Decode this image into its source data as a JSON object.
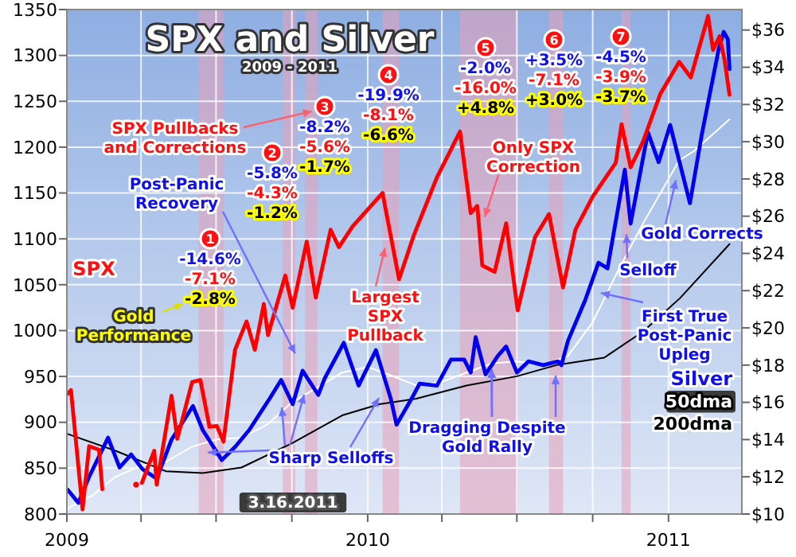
{
  "chart_data": {
    "type": "line",
    "title": "SPX and Silver",
    "subtitle": "2009 - 2011",
    "xlim": [
      "2009",
      "2011-03-31"
    ],
    "xticks": [
      {
        "value": "2009",
        "label": "2009"
      },
      {
        "value": "2009-04",
        "label": null
      },
      {
        "value": "2009-07",
        "label": null
      },
      {
        "value": "2009-10",
        "label": null
      },
      {
        "value": "2010",
        "label": "2010"
      },
      {
        "value": "2010-04",
        "label": null
      },
      {
        "value": "2010-07",
        "label": null
      },
      {
        "value": "2010-10",
        "label": null
      },
      {
        "value": "2011",
        "label": "2011"
      }
    ],
    "ylim": [
      800,
      1350
    ],
    "yticks": [
      800,
      850,
      900,
      950,
      1000,
      1050,
      1100,
      1150,
      1200,
      1250,
      1300,
      1350
    ],
    "y2lim": [
      10,
      37.1
    ],
    "y2ticks": [
      {
        "value": 10,
        "label": "$10"
      },
      {
        "value": 12,
        "label": "$12"
      },
      {
        "value": 14,
        "label": "$14"
      },
      {
        "value": 16,
        "label": "$16"
      },
      {
        "value": 18,
        "label": "$18"
      },
      {
        "value": 20,
        "label": "$20"
      },
      {
        "value": 22,
        "label": "$22"
      },
      {
        "value": 24,
        "label": "$24"
      },
      {
        "value": 26,
        "label": "$26"
      },
      {
        "value": 28,
        "label": "$28"
      },
      {
        "value": 30,
        "label": "$30"
      },
      {
        "value": 32,
        "label": "$32"
      },
      {
        "value": 34,
        "label": "$34"
      },
      {
        "value": 36,
        "label": "$36"
      }
    ],
    "grid": true,
    "series": [
      {
        "name": "SPX",
        "color": "#ff0000",
        "x": [
          "2009-01-02",
          "2009-01-06",
          "2009-01-20",
          "2009-01-28",
          "2009-02-09",
          "2009-02-13",
          "2009-02-20",
          "2009-03-09",
          "2009-03-17",
          "2009-03-26",
          "2009-03-30",
          "2009-04-02",
          "2009-04-17",
          "2009-04-20",
          "2009-05-08",
          "2009-05-15",
          "2009-06-02",
          "2009-06-12",
          "2009-06-23",
          "2009-07-02",
          "2009-07-10",
          "2009-07-24",
          "2009-08-07",
          "2009-08-17",
          "2009-08-28",
          "2009-09-02",
          "2009-09-23",
          "2009-10-02",
          "2009-10-19",
          "2009-10-30",
          "2009-11-17",
          "2009-11-27",
          "2009-12-14",
          "2010-01-19",
          "2010-02-08",
          "2010-02-26",
          "2010-03-26",
          "2010-04-23",
          "2010-05-06",
          "2010-05-14",
          "2010-05-20",
          "2010-06-04",
          "2010-06-18",
          "2010-07-02",
          "2010-07-23",
          "2010-08-09",
          "2010-08-26",
          "2010-09-10",
          "2010-10-01",
          "2010-10-29",
          "2010-11-05",
          "2010-11-16",
          "2010-12-01",
          "2010-12-22",
          "2011-01-14",
          "2011-01-28",
          "2011-02-18",
          "2011-02-24",
          "2011-03-04",
          "2011-03-10",
          "2011-03-16"
        ],
        "values": [
          931,
          935,
          805,
          874,
          870,
          827,
          null,
          null,
          null,
          832,
          null,
          834,
          869,
          832,
          929,
          882,
          944,
          946,
          895,
          896,
          879,
          979,
          1010,
          979,
          1029,
          995,
          1060,
          1025,
          1097,
          1036,
          1110,
          1091,
          1114,
          1150,
          1056,
          1104,
          1167,
          1217,
          1128,
          1136,
          1071,
          1064,
          1117,
          1022,
          1102,
          1127,
          1047,
          1110,
          1146,
          1183,
          1225,
          1178,
          1206,
          1258,
          1293,
          1276,
          1343,
          1306,
          1321,
          1295,
          1257
        ]
      },
      {
        "name": "Silver",
        "color": "#0000ee",
        "axis": "y2",
        "x": [
          "2009-01-02",
          "2009-01-15",
          "2009-01-28",
          "2009-02-20",
          "2009-03-06",
          "2009-03-20",
          "2009-04-03",
          "2009-04-20",
          "2009-05-08",
          "2009-06-03",
          "2009-06-15",
          "2009-07-08",
          "2009-07-24",
          "2009-08-10",
          "2009-09-04",
          "2009-09-18",
          "2009-10-02",
          "2009-10-14",
          "2009-11-02",
          "2009-11-10",
          "2009-12-03",
          "2009-12-21",
          "2010-01-11",
          "2010-01-29",
          "2010-02-05",
          "2010-02-22",
          "2010-03-05",
          "2010-03-26",
          "2010-04-12",
          "2010-04-28",
          "2010-05-06",
          "2010-05-12",
          "2010-05-24",
          "2010-06-08",
          "2010-06-18",
          "2010-07-01",
          "2010-07-15",
          "2010-08-02",
          "2010-08-20",
          "2010-08-24",
          "2010-09-01",
          "2010-09-22",
          "2010-10-08",
          "2010-10-19",
          "2010-11-09",
          "2010-11-16",
          "2010-12-07",
          "2010-12-20",
          "2011-01-03",
          "2011-01-27",
          "2011-02-10",
          "2011-03-03",
          "2011-03-09",
          "2011-03-14",
          "2011-03-16"
        ],
        "values": [
          11.3,
          10.6,
          12.0,
          14.1,
          12.5,
          13.2,
          12.4,
          11.9,
          14.0,
          15.8,
          14.5,
          12.9,
          13.6,
          14.5,
          16.2,
          17.2,
          15.9,
          17.7,
          16.4,
          17.3,
          19.2,
          16.9,
          18.8,
          16.2,
          14.8,
          16.1,
          17.0,
          16.9,
          18.3,
          18.3,
          17.6,
          19.5,
          17.5,
          18.5,
          19.0,
          17.6,
          18.2,
          18.0,
          18.2,
          18.0,
          19.3,
          21.5,
          23.5,
          23.2,
          28.5,
          25.6,
          30.5,
          28.9,
          30.9,
          26.7,
          30.3,
          35.0,
          35.9,
          35.5,
          33.9
        ]
      },
      {
        "name": "50dma",
        "color": "#ffffff",
        "axis": "y2",
        "x": [
          "2009-01-02",
          "2009-02-01",
          "2009-03-01",
          "2009-04-01",
          "2009-05-01",
          "2009-06-01",
          "2009-07-01",
          "2009-08-01",
          "2009-09-01",
          "2009-10-01",
          "2009-11-01",
          "2009-12-01",
          "2010-01-01",
          "2010-02-01",
          "2010-03-01",
          "2010-04-01",
          "2010-05-01",
          "2010-06-01",
          "2010-07-01",
          "2010-08-01",
          "2010-09-01",
          "2010-10-01",
          "2010-11-01",
          "2010-12-01",
          "2011-01-14",
          "2011-02-01",
          "2011-03-16"
        ],
        "values": [
          10.3,
          11.0,
          12.0,
          12.6,
          12.8,
          13.6,
          14.0,
          14.1,
          14.8,
          16.0,
          16.8,
          17.6,
          17.9,
          17.4,
          16.9,
          17.1,
          17.6,
          18.1,
          18.2,
          18.0,
          18.5,
          20.3,
          23.1,
          25.6,
          29.0,
          29.5,
          31.2
        ]
      },
      {
        "name": "200dma",
        "color": "#000000",
        "axis": "y2",
        "x": [
          "2009-01-02",
          "2009-03-01",
          "2009-05-01",
          "2009-06-15",
          "2009-08-01",
          "2009-10-01",
          "2009-12-01",
          "2010-01-15",
          "2010-03-01",
          "2010-05-01",
          "2010-07-01",
          "2010-08-18",
          "2010-10-15",
          "2010-12-01",
          "2011-01-15",
          "2011-03-16"
        ],
        "values": [
          14.3,
          13.4,
          12.3,
          12.2,
          12.5,
          13.8,
          15.3,
          15.9,
          16.2,
          16.9,
          17.4,
          18.0,
          18.4,
          19.8,
          21.6,
          24.5
        ]
      }
    ],
    "bands": [
      {
        "axis": "x",
        "from": "2009-06-10",
        "to": "2009-07-10",
        "label": "1",
        "color": "#e8a0b8"
      },
      {
        "axis": "x",
        "from": "2009-09-20",
        "to": "2009-10-05",
        "label": "2",
        "color": "#e8a0b8"
      },
      {
        "axis": "x",
        "from": "2009-10-17",
        "to": "2009-11-01",
        "label": "3",
        "color": "#e8a0b8"
      },
      {
        "axis": "x",
        "from": "2010-01-19",
        "to": "2010-02-08",
        "label": "4",
        "color": "#e8a0b8"
      },
      {
        "axis": "x",
        "from": "2010-04-23",
        "to": "2010-07-02",
        "label": "5",
        "color": "#e8a0b8"
      },
      {
        "axis": "x",
        "from": "2010-08-09",
        "to": "2010-08-26",
        "label": "6",
        "color": "#e8a0b8"
      },
      {
        "axis": "x",
        "from": "2010-11-05",
        "to": "2010-11-16",
        "label": "7",
        "color": "#e8a0b8"
      }
    ],
    "annotations": [
      {
        "text": "SPX Pullbacks and Corrections",
        "x": "2009-10-25",
        "y": 1239
      },
      {
        "text": "Post-Panic Recovery",
        "x": "2009-10-05",
        "y": 975
      },
      "Gold Performance",
      {
        "text": "Largest SPX Pullback",
        "x": "2010-01-22",
        "y": 1090
      },
      {
        "text": "Only SPX Correction",
        "x": "2010-05-23",
        "y": 1124
      },
      {
        "text": "Sharp Selloffs",
        "x": "2009-06-21",
        "y": 867
      },
      {
        "text": "Dragging Despite Gold Rally",
        "x": "2010-05-31",
        "y": 958
      },
      {
        "text": "Selloff",
        "x": "2010-11-11",
        "y": 1105
      },
      {
        "text": "Gold Corrects",
        "x": "2011-01-10",
        "y": 1164
      },
      {
        "text": "First True Post-Panic Upleg",
        "x": "2010-10-11",
        "y": 1041
      },
      "3.16.2011",
      "-14.6%",
      "-7.1%",
      "-2.8%",
      "-5.8%",
      "-4.3%",
      "-1.2%",
      "-8.2%",
      "-5.6%",
      "-1.7%",
      "-19.9%",
      "-8.1%",
      "-6.6%",
      "-2.0%",
      "-16.0%",
      "+4.8%",
      "+3.5%",
      "-7.1%",
      "+3.0%",
      "-4.5%",
      "-3.9%",
      "-3.7%"
    ]
  }
}
